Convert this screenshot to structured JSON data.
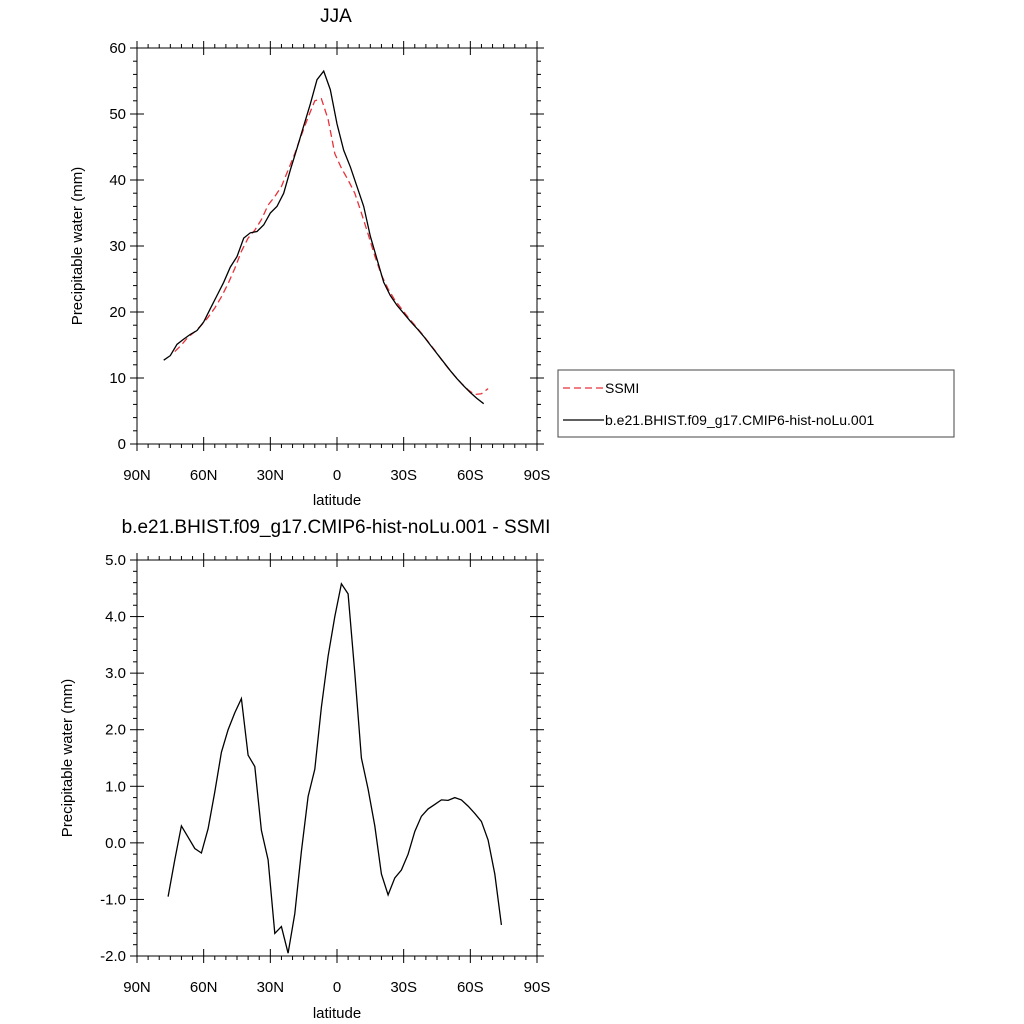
{
  "chart_data": [
    {
      "type": "line",
      "title": "JJA",
      "xlabel": "latitude",
      "ylabel": "Precipitable water (mm)",
      "xlim": [
        90,
        -90
      ],
      "ylim": [
        0,
        60
      ],
      "x_ticks": [
        {
          "value": 90,
          "label": "90N"
        },
        {
          "value": 60,
          "label": "60N"
        },
        {
          "value": 30,
          "label": "30N"
        },
        {
          "value": 0,
          "label": "0"
        },
        {
          "value": -30,
          "label": "30S"
        },
        {
          "value": -60,
          "label": "60S"
        },
        {
          "value": -90,
          "label": "90S"
        }
      ],
      "y_ticks": [
        {
          "value": 0,
          "label": "0"
        },
        {
          "value": 10,
          "label": "10"
        },
        {
          "value": 20,
          "label": "20"
        },
        {
          "value": 30,
          "label": "30"
        },
        {
          "value": 40,
          "label": "40"
        },
        {
          "value": 50,
          "label": "50"
        },
        {
          "value": 60,
          "label": "60"
        }
      ],
      "legend": {
        "position": "right"
      },
      "series": [
        {
          "name": "SSMI",
          "color": "#e8313a",
          "dash": "dashed",
          "points": [
            [
              73,
              14.0
            ],
            [
              70,
              15.0
            ],
            [
              67,
              16.2
            ],
            [
              64,
              17.0
            ],
            [
              61,
              18.0
            ],
            [
              58,
              19.2
            ],
            [
              55,
              20.6
            ],
            [
              52,
              22.3
            ],
            [
              49,
              24.3
            ],
            [
              46,
              26.6
            ],
            [
              43,
              29.2
            ],
            [
              40,
              31.2
            ],
            [
              37,
              32.4
            ],
            [
              34,
              34.0
            ],
            [
              31,
              36.2
            ],
            [
              28,
              37.5
            ],
            [
              25,
              39.0
            ],
            [
              22,
              41.5
            ],
            [
              19,
              44.0
            ],
            [
              16,
              46.8
            ],
            [
              13,
              49.5
            ],
            [
              10,
              52.0
            ],
            [
              7,
              52.3
            ],
            [
              4,
              49.2
            ],
            [
              1,
              44.0
            ],
            [
              -2,
              41.8
            ],
            [
              -5,
              40.0
            ],
            [
              -8,
              38.0
            ],
            [
              -11,
              35.0
            ],
            [
              -14,
              31.8
            ],
            [
              -17,
              28.5
            ],
            [
              -20,
              25.6
            ],
            [
              -23,
              23.5
            ],
            [
              -26,
              21.8
            ],
            [
              -29,
              20.5
            ],
            [
              -32,
              19.2
            ],
            [
              -35,
              18.0
            ],
            [
              -38,
              16.8
            ],
            [
              -41,
              15.5
            ],
            [
              -44,
              14.2
            ],
            [
              -47,
              12.8
            ],
            [
              -50,
              11.5
            ],
            [
              -53,
              10.3
            ],
            [
              -56,
              9.2
            ],
            [
              -59,
              8.2
            ],
            [
              -62,
              7.5
            ],
            [
              -65,
              7.6
            ],
            [
              -68,
              8.4
            ]
          ]
        },
        {
          "name": "b.e21.BHIST.f09_g17.CMIP6-hist-noLu.001",
          "color": "#000000",
          "dash": "solid",
          "points": [
            [
              78,
              12.7
            ],
            [
              75,
              13.4
            ],
            [
              72,
              15.1
            ],
            [
              69,
              15.9
            ],
            [
              66,
              16.6
            ],
            [
              63,
              17.2
            ],
            [
              60,
              18.5
            ],
            [
              57,
              20.5
            ],
            [
              54,
              22.5
            ],
            [
              51,
              24.5
            ],
            [
              48,
              26.8
            ],
            [
              45,
              28.4
            ],
            [
              42,
              31.2
            ],
            [
              39,
              32.0
            ],
            [
              36,
              32.2
            ],
            [
              33,
              33.2
            ],
            [
              30,
              35.0
            ],
            [
              27,
              36.0
            ],
            [
              24,
              38.0
            ],
            [
              21,
              41.5
            ],
            [
              18,
              44.8
            ],
            [
              15,
              48.2
            ],
            [
              12,
              51.5
            ],
            [
              9,
              55.2
            ],
            [
              6,
              56.5
            ],
            [
              3,
              53.7
            ],
            [
              0,
              48.5
            ],
            [
              -3,
              44.5
            ],
            [
              -6,
              42.0
            ],
            [
              -9,
              39.0
            ],
            [
              -12,
              36.0
            ],
            [
              -15,
              31.5
            ],
            [
              -18,
              28.0
            ],
            [
              -21,
              24.5
            ],
            [
              -24,
              22.5
            ],
            [
              -27,
              21.0
            ],
            [
              -30,
              19.8
            ],
            [
              -33,
              18.6
            ],
            [
              -36,
              17.5
            ],
            [
              -39,
              16.3
            ],
            [
              -42,
              15.0
            ],
            [
              -45,
              13.7
            ],
            [
              -48,
              12.4
            ],
            [
              -51,
              11.1
            ],
            [
              -54,
              9.9
            ],
            [
              -57,
              8.8
            ],
            [
              -60,
              7.8
            ],
            [
              -63,
              6.9
            ],
            [
              -66,
              6.1
            ]
          ]
        }
      ]
    },
    {
      "type": "line",
      "title": "b.e21.BHIST.f09_g17.CMIP6-hist-noLu.001 - SSMI",
      "xlabel": "latitude",
      "ylabel": "Precipitable water (mm)",
      "xlim": [
        90,
        -90
      ],
      "ylim": [
        -2.0,
        5.0
      ],
      "x_ticks": [
        {
          "value": 90,
          "label": "90N"
        },
        {
          "value": 60,
          "label": "60N"
        },
        {
          "value": 30,
          "label": "30N"
        },
        {
          "value": 0,
          "label": "0"
        },
        {
          "value": -30,
          "label": "30S"
        },
        {
          "value": -60,
          "label": "60S"
        },
        {
          "value": -90,
          "label": "90S"
        }
      ],
      "y_ticks": [
        {
          "value": -2,
          "label": "-2.0"
        },
        {
          "value": -1,
          "label": "-1.0"
        },
        {
          "value": 0,
          "label": "0.0"
        },
        {
          "value": 1,
          "label": "1.0"
        },
        {
          "value": 2,
          "label": "2.0"
        },
        {
          "value": 3,
          "label": "3.0"
        },
        {
          "value": 4,
          "label": "4.0"
        },
        {
          "value": 5,
          "label": "5.0"
        }
      ],
      "series": [
        {
          "color": "#000000",
          "dash": "solid",
          "points": [
            [
              76,
              -0.95
            ],
            [
              73,
              -0.3
            ],
            [
              70,
              0.3
            ],
            [
              67,
              0.1
            ],
            [
              64,
              -0.1
            ],
            [
              61,
              -0.18
            ],
            [
              58,
              0.25
            ],
            [
              55,
              0.9
            ],
            [
              52,
              1.6
            ],
            [
              49,
              2.0
            ],
            [
              46,
              2.3
            ],
            [
              43,
              2.55
            ],
            [
              40,
              1.55
            ],
            [
              37,
              1.35
            ],
            [
              34,
              0.22
            ],
            [
              31,
              -0.3
            ],
            [
              28,
              -1.6
            ],
            [
              25,
              -1.48
            ],
            [
              22,
              -1.95
            ],
            [
              19,
              -1.25
            ],
            [
              16,
              -0.15
            ],
            [
              13,
              0.82
            ],
            [
              10,
              1.3
            ],
            [
              7,
              2.4
            ],
            [
              4,
              3.3
            ],
            [
              1,
              4.0
            ],
            [
              -2,
              4.58
            ],
            [
              -5,
              4.4
            ],
            [
              -8,
              3.0
            ],
            [
              -11,
              1.5
            ],
            [
              -14,
              0.95
            ],
            [
              -17,
              0.3
            ],
            [
              -20,
              -0.55
            ],
            [
              -23,
              -0.92
            ],
            [
              -26,
              -0.62
            ],
            [
              -29,
              -0.48
            ],
            [
              -32,
              -0.2
            ],
            [
              -35,
              0.2
            ],
            [
              -38,
              0.47
            ],
            [
              -41,
              0.6
            ],
            [
              -44,
              0.68
            ],
            [
              -47,
              0.76
            ],
            [
              -50,
              0.75
            ],
            [
              -53,
              0.8
            ],
            [
              -56,
              0.76
            ],
            [
              -59,
              0.65
            ],
            [
              -62,
              0.52
            ],
            [
              -65,
              0.38
            ],
            [
              -68,
              0.05
            ],
            [
              -71,
              -0.55
            ],
            [
              -74,
              -1.45
            ]
          ]
        }
      ]
    }
  ]
}
